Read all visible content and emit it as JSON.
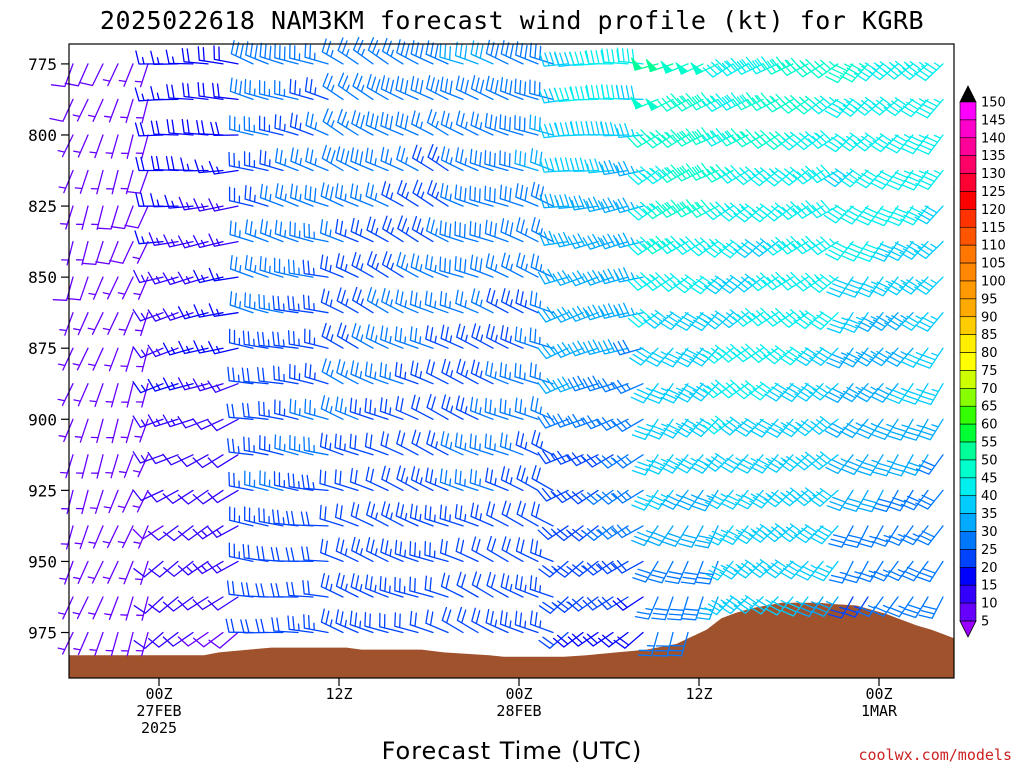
{
  "chart_data": {
    "type": "wind-barb-profile",
    "title": "2025022618 NAM3KM forecast wind profile (kt) for KGRB",
    "xlabel": "Forecast Time (UTC)",
    "ylabel": "",
    "y_ticks": [
      775,
      800,
      825,
      850,
      875,
      900,
      925,
      950,
      975
    ],
    "ylim": [
      991,
      768
    ],
    "x_ticks": [
      {
        "hour": 6,
        "lines": [
          "00Z",
          "27FEB",
          "2025"
        ]
      },
      {
        "hour": 18,
        "lines": [
          "12Z"
        ]
      },
      {
        "hour": 30,
        "lines": [
          "00Z",
          "28FEB"
        ]
      },
      {
        "hour": 42,
        "lines": [
          "12Z"
        ]
      },
      {
        "hour": 54,
        "lines": [
          "00Z",
          "1MAR"
        ]
      }
    ],
    "xlim": [
      0,
      59
    ],
    "time_step_hours": 1,
    "levels": [
      775,
      787.5,
      800,
      812.5,
      825,
      837.5,
      850,
      862.5,
      875,
      887.5,
      900,
      912.5,
      925,
      937.5,
      950,
      962.5,
      975
    ],
    "surface_pressure": [
      {
        "hour": 0,
        "p": 983.0
      },
      {
        "hour": 9,
        "p": 983.0
      },
      {
        "hour": 10,
        "p": 982.0
      },
      {
        "hour": 12,
        "p": 981.0
      },
      {
        "hour": 13.5,
        "p": 980.3
      },
      {
        "hour": 18.5,
        "p": 980.3
      },
      {
        "hour": 19.5,
        "p": 981.0
      },
      {
        "hour": 23.5,
        "p": 981.0
      },
      {
        "hour": 25,
        "p": 982.0
      },
      {
        "hour": 28,
        "p": 983.0
      },
      {
        "hour": 29,
        "p": 983.5
      },
      {
        "hour": 33,
        "p": 983.5
      },
      {
        "hour": 34.5,
        "p": 983.0
      },
      {
        "hour": 36.5,
        "p": 982.0
      },
      {
        "hour": 38.5,
        "p": 981.0
      },
      {
        "hour": 39.5,
        "p": 980.0
      },
      {
        "hour": 40.5,
        "p": 979.0
      },
      {
        "hour": 41.5,
        "p": 976.5
      },
      {
        "hour": 42.5,
        "p": 974.0
      },
      {
        "hour": 43.5,
        "p": 970.0
      },
      {
        "hour": 44.5,
        "p": 968.0
      },
      {
        "hour": 45.5,
        "p": 966.5
      },
      {
        "hour": 46.5,
        "p": 965.5
      },
      {
        "hour": 47.5,
        "p": 964.5
      },
      {
        "hour": 50,
        "p": 964.5
      },
      {
        "hour": 51,
        "p": 965.0
      },
      {
        "hour": 52.5,
        "p": 965.5
      },
      {
        "hour": 53.5,
        "p": 967.0
      },
      {
        "hour": 54.5,
        "p": 968.5
      },
      {
        "hour": 55.5,
        "p": 970.5
      },
      {
        "hour": 56.5,
        "p": 972.5
      },
      {
        "hour": 57.5,
        "p": 974.0
      },
      {
        "hour": 58.5,
        "p": 976.0
      },
      {
        "hour": 59,
        "p": 977.0
      }
    ],
    "wind_regimes": [
      {
        "hour_start": 0,
        "hour_end": 6,
        "dir_top": 200,
        "dir_low": 200,
        "spd_top": 7,
        "spd_low": 4
      },
      {
        "hour_start": 6,
        "hour_end": 12,
        "dir_top": 275,
        "dir_low": 230,
        "spd_top": 18,
        "spd_low": 10
      },
      {
        "hour_start": 12,
        "hour_end": 18,
        "dir_top": 290,
        "dir_low": 275,
        "spd_top": 27,
        "spd_low": 22
      },
      {
        "hour_start": 18,
        "hour_end": 26,
        "dir_top": 300,
        "dir_low": 290,
        "spd_top": 27,
        "spd_low": 22
      },
      {
        "hour_start": 26,
        "hour_end": 33,
        "dir_top": 290,
        "dir_low": 295,
        "spd_top": 30,
        "spd_low": 22
      },
      {
        "hour_start": 33,
        "hour_end": 39,
        "dir_top": 270,
        "dir_low": 230,
        "spd_top": 40,
        "spd_low": 20
      },
      {
        "hour_start": 39,
        "hour_end": 44,
        "dir_top": 250,
        "dir_low": 200,
        "spd_top": 50,
        "spd_low": 28
      },
      {
        "hour_start": 44,
        "hour_end": 52,
        "dir_top": 240,
        "dir_low": 220,
        "spd_top": 45,
        "spd_low": 35
      },
      {
        "hour_start": 52,
        "hour_end": 59,
        "dir_top": 225,
        "dir_low": 210,
        "spd_top": 45,
        "spd_low": 25
      }
    ],
    "colorbar": {
      "ticks": [
        150,
        145,
        140,
        135,
        130,
        125,
        120,
        115,
        110,
        105,
        100,
        95,
        90,
        85,
        80,
        75,
        70,
        65,
        60,
        55,
        50,
        45,
        40,
        35,
        30,
        25,
        20,
        15,
        10,
        5
      ],
      "colors": [
        "#ff00ff",
        "#ff00cc",
        "#ff0099",
        "#ff0066",
        "#ff0033",
        "#ff0000",
        "#ff3300",
        "#ff5500",
        "#ff7700",
        "#ff8800",
        "#ff9900",
        "#ffaa00",
        "#ffcc00",
        "#ffee00",
        "#ffff00",
        "#ccff00",
        "#88ff00",
        "#33ff00",
        "#00ff33",
        "#00ff99",
        "#00ffcc",
        "#00eeee",
        "#00ccff",
        "#00aaff",
        "#0077ff",
        "#0044ff",
        "#0000ff",
        "#3300ff",
        "#6600ff",
        "#9900ff"
      ],
      "top_arrow_color": "#000000",
      "bottom_arrow_color": "#9900ff"
    },
    "terrain_color": "#a0522d",
    "credit": "coolwx.com/models"
  }
}
